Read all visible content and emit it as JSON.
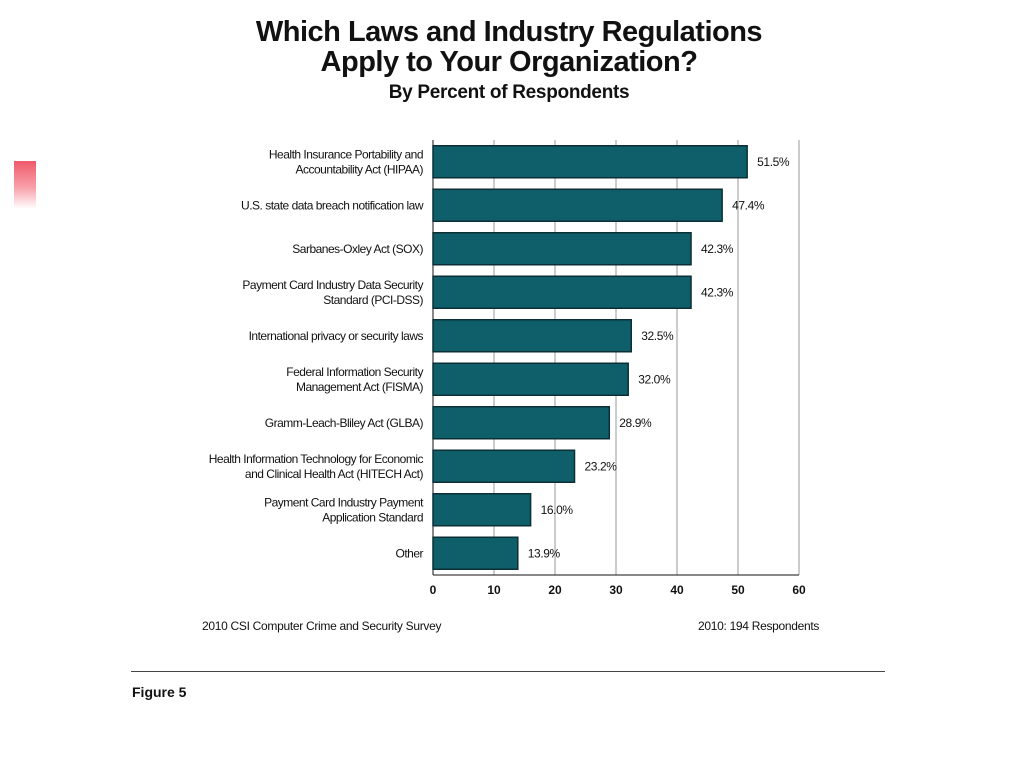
{
  "chart_data": {
    "type": "bar",
    "orientation": "horizontal",
    "title_lines": [
      "Which Laws and Industry Regulations",
      "Apply to Your Organization?"
    ],
    "subtitle": "By Percent of Respondents",
    "categories": [
      [
        "Health Insurance Portability and",
        "Accountability Act (HIPAA)"
      ],
      [
        "U.S. state data breach notification law"
      ],
      [
        "Sarbanes-Oxley Act (SOX)"
      ],
      [
        "Payment Card Industry Data Security",
        "Standard (PCI-DSS)"
      ],
      [
        "International privacy or security laws"
      ],
      [
        "Federal Information Security",
        "Management Act (FISMA)"
      ],
      [
        "Gramm-Leach-Bliley Act (GLBA)"
      ],
      [
        "Health Information Technology for Economic",
        "and Clinical Health Act (HITECH Act)"
      ],
      [
        "Payment Card Industry Payment",
        "Application Standard"
      ],
      [
        "Other"
      ]
    ],
    "values": [
      51.5,
      47.4,
      42.3,
      42.3,
      32.5,
      32.0,
      28.9,
      23.2,
      16.0,
      13.9
    ],
    "value_labels": [
      "51.5%",
      "47.4%",
      "42.3%",
      "42.3%",
      "32.5%",
      "32.0%",
      "28.9%",
      "23.2%",
      "16.0%",
      "13.9%"
    ],
    "xlim": [
      0,
      60
    ],
    "xticks": [
      0,
      10,
      20,
      30,
      40,
      50,
      60
    ],
    "grid": true,
    "bar_color": "#0f5f6b"
  },
  "footer": {
    "source": "2010 CSI Computer Crime and Security Survey",
    "respondents": "2010: 194 Respondents"
  },
  "figure_label": "Figure 5",
  "accent_color": "#f05a6a"
}
